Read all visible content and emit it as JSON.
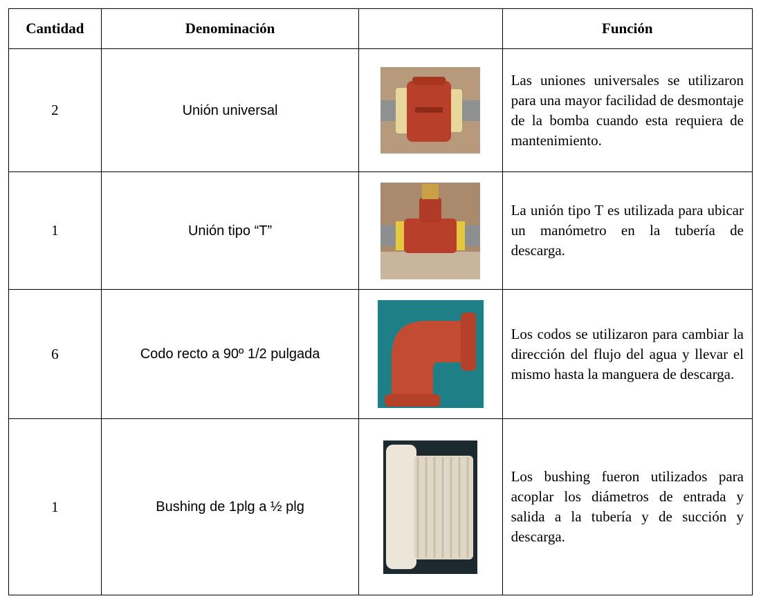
{
  "table": {
    "header": {
      "cantidad": "Cantidad",
      "denominacion": "Denominación",
      "funcion": "Función"
    },
    "rows": [
      {
        "cantidad": 2,
        "denominacion": "Unión universal",
        "funcion": "Las uniones universales se utilizaron para una mayor facilidad de desmontaje de la bomba cuando esta requiera de mantenimiento."
      },
      {
        "cantidad": 1,
        "denominacion": "Unión tipo “T”",
        "funcion": "La unión tipo T es utilizada para ubicar un manómetro en la tubería de descarga."
      },
      {
        "cantidad": 6,
        "denominacion": "Codo recto a 90º 1/2 pulgada",
        "funcion": "Los codos se utilizaron para cambiar la dirección del flujo del agua y llevar el mismo hasta la manguera de descarga."
      },
      {
        "cantidad": 1,
        "denominacion": "Bushing de 1plg a ½ plg",
        "funcion": "Los bushing fueron utilizados para acoplar los diámetros de entrada y salida a la tubería y de succión y descarga."
      }
    ]
  }
}
